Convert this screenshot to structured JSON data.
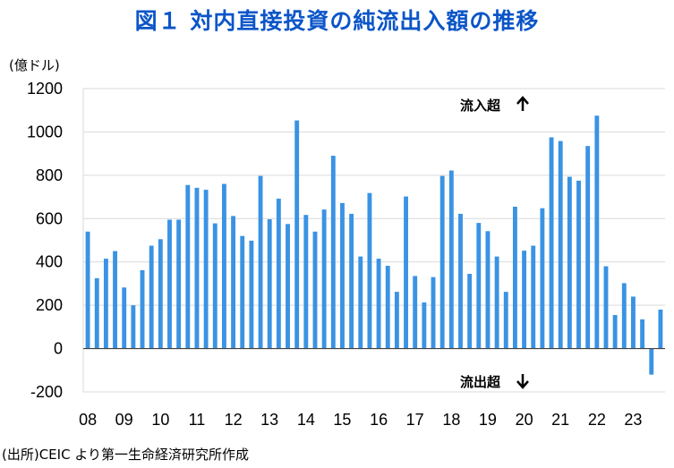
{
  "header": {
    "title": "図１ 対内直接投資の純流出入額の推移"
  },
  "source_note": "(出所)CEIC より第一生命経済研究所作成",
  "chart_data": {
    "type": "bar",
    "title": "図１ 対内直接投資の純流出入額の推移",
    "unit_label": "(億ドル)",
    "xlabel": "",
    "ylabel": "(億ドル)",
    "ylim": [
      -200,
      1200
    ],
    "yticks": [
      -200,
      0,
      200,
      400,
      600,
      800,
      1000,
      1200
    ],
    "x_tick_labels": [
      "08",
      "09",
      "10",
      "11",
      "12",
      "13",
      "14",
      "15",
      "16",
      "17",
      "18",
      "19",
      "20",
      "21",
      "22",
      "23"
    ],
    "periods_per_year": 4,
    "bar_color": "#3a93e3",
    "annotations": {
      "inflow": "流入超",
      "outflow": "流出超"
    },
    "series": [
      {
        "name": "純流出入額",
        "values": [
          540,
          325,
          415,
          450,
          282,
          200,
          362,
          475,
          505,
          595,
          595,
          755,
          742,
          733,
          578,
          760,
          612,
          520,
          498,
          797,
          597,
          692,
          575,
          1053,
          617,
          540,
          642,
          890,
          672,
          622,
          425,
          718,
          415,
          382,
          262,
          702,
          335,
          213,
          330,
          797,
          822,
          622,
          345,
          580,
          542,
          425,
          262,
          655,
          452,
          475,
          648,
          975,
          958,
          793,
          775,
          935,
          1075,
          380,
          155,
          302,
          240,
          135,
          -120,
          180
        ]
      }
    ]
  }
}
